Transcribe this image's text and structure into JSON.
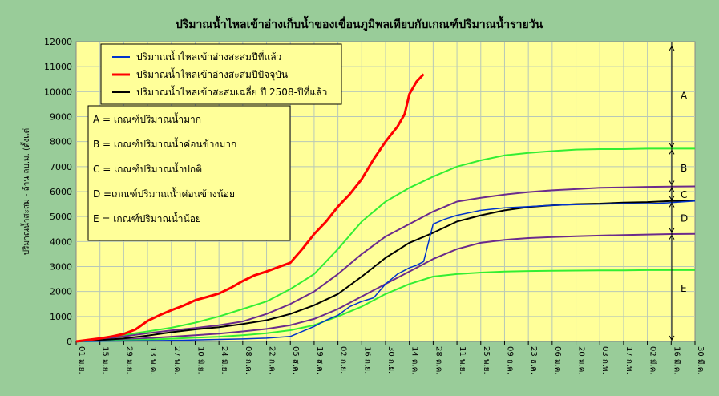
{
  "chart_data": {
    "type": "line",
    "title": "ปริมาณน้ำไหลเข้าอ่างเก็บน้ำของเขื่อนภูมิพลเทียบกับเกณฑ์ปริมาณน้ำรายวัน",
    "ylabel": "ปริมาณน้ำสะสม - ล้าน ลบ.ม. (ตั้งแต่",
    "ylim": [
      0,
      12000
    ],
    "yticks": [
      0,
      1000,
      2000,
      3000,
      4000,
      5000,
      6000,
      7000,
      8000,
      9000,
      10000,
      11000,
      12000
    ],
    "x_tick_labels": [
      "01 ม.ย.",
      "15 ม.ย.",
      "29 ม.ย.",
      "13 พ.ค.",
      "27 พ.ค.",
      "10 มิ.ย.",
      "24 มิ.ย.",
      "08 ก.ค.",
      "22 ก.ค.",
      "05 ส.ค.",
      "19 ส.ค.",
      "02 ก.ย.",
      "16 ก.ย.",
      "30 ก.ย.",
      "14 ต.ค.",
      "28 ต.ค.",
      "11 พ.ย.",
      "25 พ.ย.",
      "09 ธ.ค.",
      "23 ธ.ค.",
      "06 ม.ค.",
      "20 ม.ค.",
      "03 ก.พ.",
      "17 ก.พ.",
      "02 มี.ค.",
      "16 มี.ค.",
      "30 มี.ค."
    ],
    "grid": true,
    "legend_position": "top-left",
    "series": [
      {
        "name": "ปริมาณน้ำไหลเข้าอ่างสะสมปีที่แล้ว",
        "color": "#0033cc",
        "width": 1.5,
        "x": [
          0,
          1,
          2,
          3,
          4,
          5,
          6,
          7,
          8,
          9,
          10,
          10.5,
          11,
          11.5,
          12,
          12.5,
          13,
          13.5,
          14,
          14.3,
          14.6,
          15,
          15.5,
          16,
          17,
          18,
          19,
          20,
          21,
          22,
          23,
          24,
          24.5,
          25,
          26
        ],
        "y": [
          0,
          10,
          20,
          30,
          40,
          60,
          80,
          100,
          130,
          200,
          600,
          850,
          1050,
          1400,
          1600,
          1750,
          2300,
          2700,
          2950,
          3050,
          3200,
          4700,
          4900,
          5050,
          5250,
          5350,
          5400,
          5450,
          5480,
          5500,
          5520,
          5520,
          5530,
          5560,
          5620
        ]
      },
      {
        "name": "ปริมาณน้ำไหลเข้าอ่างสะสมปีปัจจุบัน",
        "color": "#ff0000",
        "width": 3,
        "x": [
          0,
          0.5,
          1,
          1.5,
          2,
          2.5,
          3,
          3.5,
          4,
          4.5,
          5,
          5.5,
          6,
          6.5,
          7,
          7.5,
          8,
          8.5,
          9,
          9.5,
          10,
          10.5,
          11,
          11.5,
          12,
          12.5,
          13,
          13.5,
          13.8,
          14,
          14.3,
          14.6
        ],
        "y": [
          0,
          60,
          120,
          200,
          300,
          480,
          820,
          1050,
          1250,
          1430,
          1650,
          1780,
          1920,
          2150,
          2420,
          2650,
          2800,
          2980,
          3150,
          3700,
          4300,
          4800,
          5400,
          5900,
          6500,
          7300,
          8000,
          8600,
          9100,
          9900,
          10400,
          10700
        ]
      },
      {
        "name": "ปริมาณน้ำไหลเข้าสะสมเฉลี่ย ปี 2508-ปีที่แล้ว",
        "color": "#000000",
        "width": 2,
        "x": [
          0,
          1,
          2,
          3,
          4,
          5,
          6,
          7,
          8,
          9,
          10,
          11,
          12,
          13,
          14,
          15,
          16,
          17,
          18,
          19,
          20,
          21,
          22,
          23,
          24,
          25,
          26
        ],
        "y": [
          0,
          50,
          120,
          230,
          370,
          480,
          570,
          700,
          850,
          1100,
          1450,
          1900,
          2600,
          3350,
          3950,
          4350,
          4800,
          5050,
          5250,
          5380,
          5450,
          5500,
          5520,
          5560,
          5580,
          5620,
          5630
        ]
      },
      {
        "name": "",
        "color": "#33ee33",
        "width": 2,
        "x": [
          0,
          1,
          2,
          3,
          4,
          5,
          6,
          7,
          8,
          9,
          10,
          11,
          12,
          13,
          14,
          15,
          16,
          17,
          18,
          19,
          20,
          21,
          22,
          23,
          24,
          25,
          26
        ],
        "y": [
          0,
          120,
          260,
          400,
          550,
          750,
          1000,
          1300,
          1600,
          2100,
          2700,
          3700,
          4800,
          5600,
          6150,
          6600,
          7000,
          7250,
          7450,
          7550,
          7620,
          7680,
          7700,
          7700,
          7720,
          7720,
          7720
        ]
      },
      {
        "name": "",
        "color": "#6b2b8c",
        "width": 2,
        "x": [
          0,
          1,
          2,
          3,
          4,
          5,
          6,
          7,
          8,
          9,
          10,
          11,
          12,
          13,
          14,
          15,
          16,
          17,
          18,
          19,
          20,
          21,
          22,
          23,
          24,
          25,
          26
        ],
        "y": [
          0,
          90,
          200,
          330,
          440,
          540,
          650,
          800,
          1100,
          1500,
          2000,
          2700,
          3500,
          4200,
          4700,
          5200,
          5600,
          5750,
          5880,
          5980,
          6050,
          6100,
          6150,
          6170,
          6190,
          6200,
          6210
        ]
      },
      {
        "name": "",
        "color": "#6b2b8c",
        "width": 2,
        "x": [
          0,
          1,
          2,
          3,
          4,
          5,
          6,
          7,
          8,
          9,
          10,
          11,
          12,
          13,
          14,
          15,
          16,
          17,
          18,
          19,
          20,
          21,
          22,
          23,
          24,
          25,
          26
        ],
        "y": [
          0,
          30,
          70,
          130,
          190,
          250,
          310,
          400,
          500,
          650,
          900,
          1300,
          1800,
          2300,
          2800,
          3300,
          3700,
          3950,
          4070,
          4140,
          4180,
          4210,
          4240,
          4260,
          4280,
          4300,
          4310
        ]
      },
      {
        "name": "",
        "color": "#33ee33",
        "width": 2,
        "x": [
          0,
          1,
          2,
          3,
          4,
          5,
          6,
          7,
          8,
          9,
          10,
          11,
          12,
          13,
          14,
          15,
          16,
          17,
          18,
          19,
          20,
          21,
          22,
          23,
          24,
          25,
          26
        ],
        "y": [
          0,
          15,
          40,
          70,
          110,
          150,
          190,
          250,
          330,
          450,
          650,
          1000,
          1400,
          1900,
          2300,
          2600,
          2700,
          2760,
          2800,
          2820,
          2830,
          2840,
          2850,
          2850,
          2860,
          2860,
          2860
        ]
      }
    ]
  },
  "legend": {
    "items": [
      {
        "label": "ปริมาณน้ำไหลเข้าอ่างสะสมปีที่แล้ว",
        "color": "#0033cc"
      },
      {
        "label": "ปริมาณน้ำไหลเข้าอ่างสะสมปีปัจจุบัน",
        "color": "#ff0000"
      },
      {
        "label": "ปริมาณน้ำไหลเข้าสะสมเฉลี่ย ปี 2508-ปีที่แล้ว",
        "color": "#000000"
      }
    ]
  },
  "criteria": [
    "A = เกณฑ์ปริมาณน้ำมาก",
    "B = เกณฑ์ปริมาณน้ำค่อนข้างมาก",
    "C = เกณฑ์ปริมาณน้ำปกติ",
    "D =เกณฑ์ปริมาณน้ำค่อนข้างน้อย",
    "E = เกณฑ์ปริมาณน้ำน้อย"
  ],
  "zones": [
    {
      "label": "A"
    },
    {
      "label": "B"
    },
    {
      "label": "C"
    },
    {
      "label": "D"
    },
    {
      "label": "E"
    }
  ],
  "colors": {
    "plot_bg": "#ffff99",
    "page_bg": "#99cc99"
  }
}
